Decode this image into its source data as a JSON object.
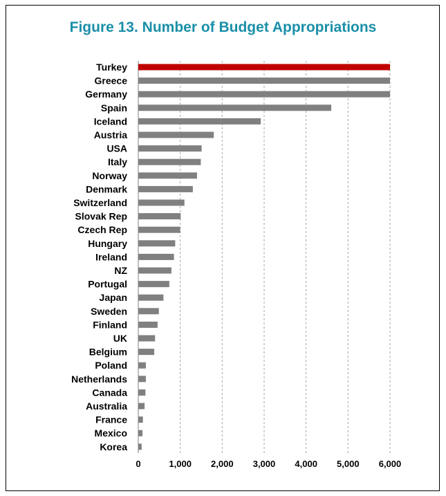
{
  "chart_data": {
    "type": "bar",
    "orientation": "horizontal",
    "title": "Figure 13. Number of Budget Appropriations",
    "xlabel": "",
    "ylabel": "",
    "xlim": [
      0,
      6000
    ],
    "xticks": [
      0,
      1000,
      2000,
      3000,
      4000,
      5000,
      6000
    ],
    "xtick_labels": [
      "0",
      "1,000",
      "2,000",
      "3,000",
      "4,000",
      "5,000",
      "6,000"
    ],
    "grid": "vertical dashed",
    "categories": [
      "Turkey",
      "Greece",
      "Germany",
      "Spain",
      "Iceland",
      "Austria",
      "USA",
      "Italy",
      "Norway",
      "Denmark",
      "Switzerland",
      "Slovak Rep",
      "Czech Rep",
      "Hungary",
      "Ireland",
      "NZ",
      "Portugal",
      "Japan",
      "Sweden",
      "Finland",
      "UK",
      "Belgium",
      "Poland",
      "Netherlands",
      "Canada",
      "Australia",
      "France",
      "Mexico",
      "Korea"
    ],
    "values": [
      6000,
      6000,
      6000,
      4600,
      2920,
      1800,
      1510,
      1490,
      1400,
      1300,
      1100,
      1010,
      1000,
      880,
      850,
      790,
      740,
      600,
      490,
      460,
      400,
      380,
      180,
      180,
      170,
      150,
      110,
      100,
      80
    ],
    "highlight_category": "Turkey",
    "colors": {
      "highlight": "#c00000",
      "bar": "#808080",
      "title": "#1a8fa8",
      "grid": "#a6a6a6"
    }
  }
}
